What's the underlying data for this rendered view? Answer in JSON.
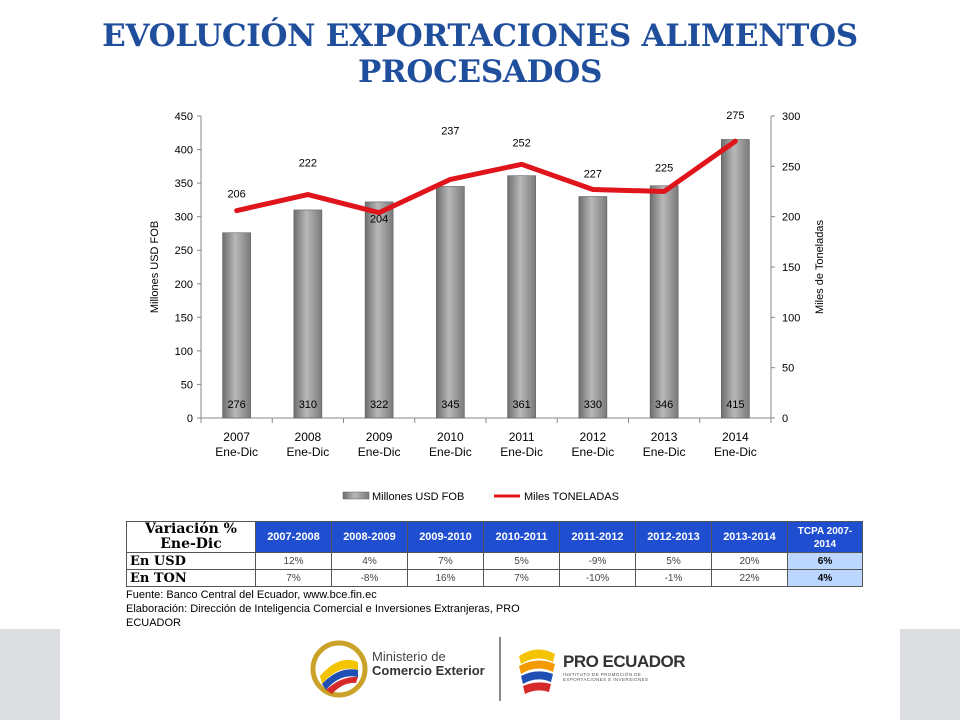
{
  "title": "EVOLUCIÓN EXPORTACIONES ALIMENTOS PROCESADOS",
  "chart_data": {
    "type": "bar+line",
    "categories": [
      "2007\nEne-Dic",
      "2008\nEne-Dic",
      "2009\nEne-Dic",
      "2010\nEne-Dic",
      "2011\nEne-Dic",
      "2012\nEne-Dic",
      "2013\nEne-Dic",
      "2014\nEne-Dic"
    ],
    "series": [
      {
        "name": "Millones USD FOB",
        "kind": "bar",
        "axis": "left",
        "values": [
          276,
          310,
          322,
          345,
          361,
          330,
          346,
          415
        ],
        "color": "#8c8c8c"
      },
      {
        "name": "Miles TONELADAS",
        "kind": "line",
        "axis": "right",
        "values": [
          206,
          222,
          204,
          237,
          252,
          227,
          225,
          275
        ],
        "color": "#e0141b"
      }
    ],
    "ylabel_left": "Millones USD FOB",
    "ylabel_right": "Miles de Toneladas",
    "ylim_left": [
      0,
      450
    ],
    "yticks_left": [
      0,
      50,
      100,
      150,
      200,
      250,
      300,
      350,
      400,
      450
    ],
    "ylim_right": [
      0,
      300
    ],
    "yticks_right": [
      0,
      50,
      100,
      150,
      200,
      250,
      300
    ],
    "grid": false,
    "legend": "bottom"
  },
  "table": {
    "corner_label": "Variación % Ene-Dic",
    "headers": [
      "2007-2008",
      "2008-2009",
      "2009-2010",
      "2010-2011",
      "2011-2012",
      "2012-2013",
      "2013-2014"
    ],
    "tcpa_header": "TCPA 2007-2014",
    "rows": [
      {
        "label": "En USD",
        "values": [
          "12%",
          "4%",
          "7%",
          "5%",
          "-9%",
          "5%",
          "20%"
        ],
        "tcpa": "6%"
      },
      {
        "label": "En TON",
        "values": [
          "7%",
          "-8%",
          "16%",
          "7%",
          "-10%",
          "-1%",
          "22%"
        ],
        "tcpa": "4%"
      }
    ]
  },
  "source_lines": [
    "Fuente: Banco Central del Ecuador, www.bce.fin.ec",
    "Elaboración: Dirección de Inteligencia Comercial e Inversiones Extranjeras, PRO ECUADOR"
  ],
  "logos": {
    "ministerio_line1": "Ministerio de",
    "ministerio_line2": "Comercio Exterior",
    "proecuador_title": "PRO ECUADOR",
    "proecuador_sub": "INSTITUTO DE PROMOCIÓN DE EXPORTACIONES E INVERSIONES"
  }
}
